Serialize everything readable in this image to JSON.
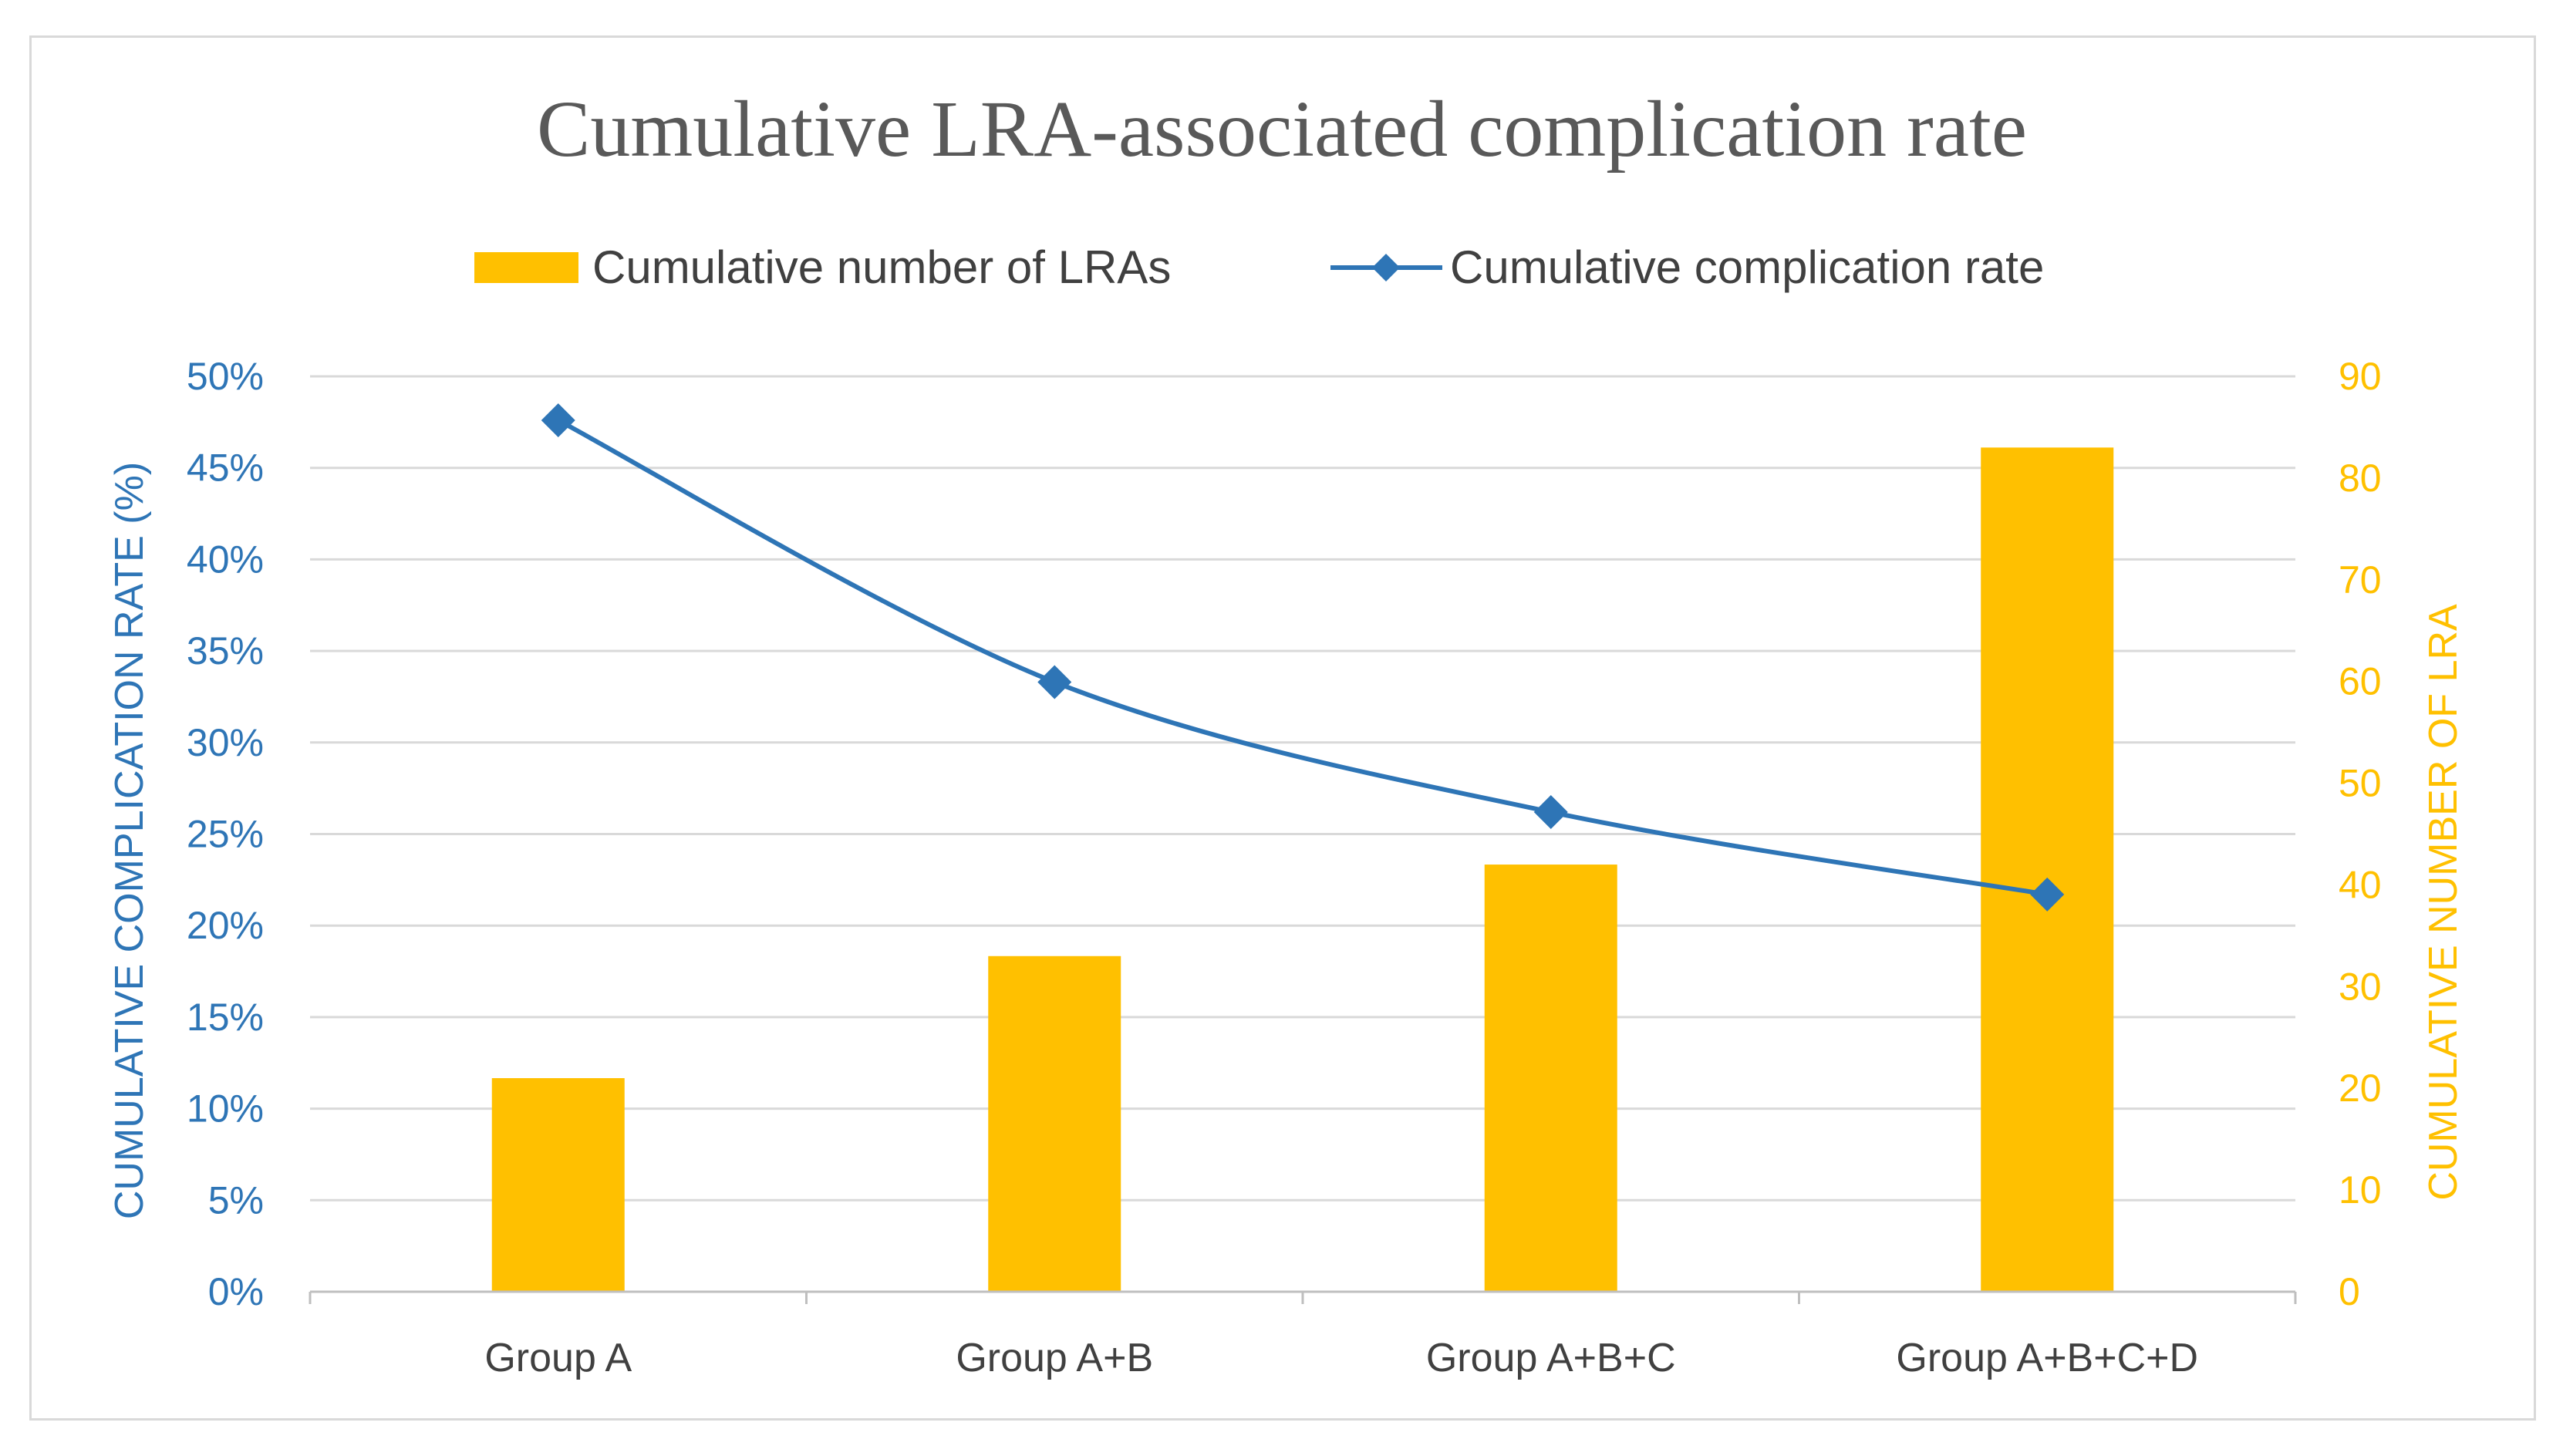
{
  "chart_data": {
    "type": "bar+line",
    "title": "Cumulative LRA-associated complication rate",
    "categories": [
      "Group A",
      "Group A+B",
      "Group A+B+C",
      "Group A+B+C+D"
    ],
    "series": [
      {
        "name": "Cumulative number of LRAs",
        "kind": "bar",
        "axis": "right",
        "color": "#ffc000",
        "values": [
          21,
          33,
          42,
          83
        ]
      },
      {
        "name": "Cumulative complication rate",
        "kind": "line",
        "axis": "left",
        "color": "#2e75b6",
        "marker": "diamond",
        "values": [
          47.6,
          33.3,
          26.2,
          21.7
        ]
      }
    ],
    "y_left": {
      "label": "CUMULATIVE COMPLICATION RATE (%)",
      "ylim": [
        0,
        50
      ],
      "ticks": [
        "0%",
        "5%",
        "10%",
        "15%",
        "20%",
        "25%",
        "30%",
        "35%",
        "40%",
        "45%",
        "50%"
      ],
      "color": "#2e75b6"
    },
    "y_right": {
      "label": "CUMULATIVE NUMBER OF LRA",
      "ylim": [
        0,
        90
      ],
      "ticks": [
        "0",
        "10",
        "20",
        "30",
        "40",
        "50",
        "60",
        "70",
        "80",
        "90"
      ],
      "color": "#ffc000"
    },
    "legend": {
      "position": "top-center"
    },
    "grid": true
  }
}
